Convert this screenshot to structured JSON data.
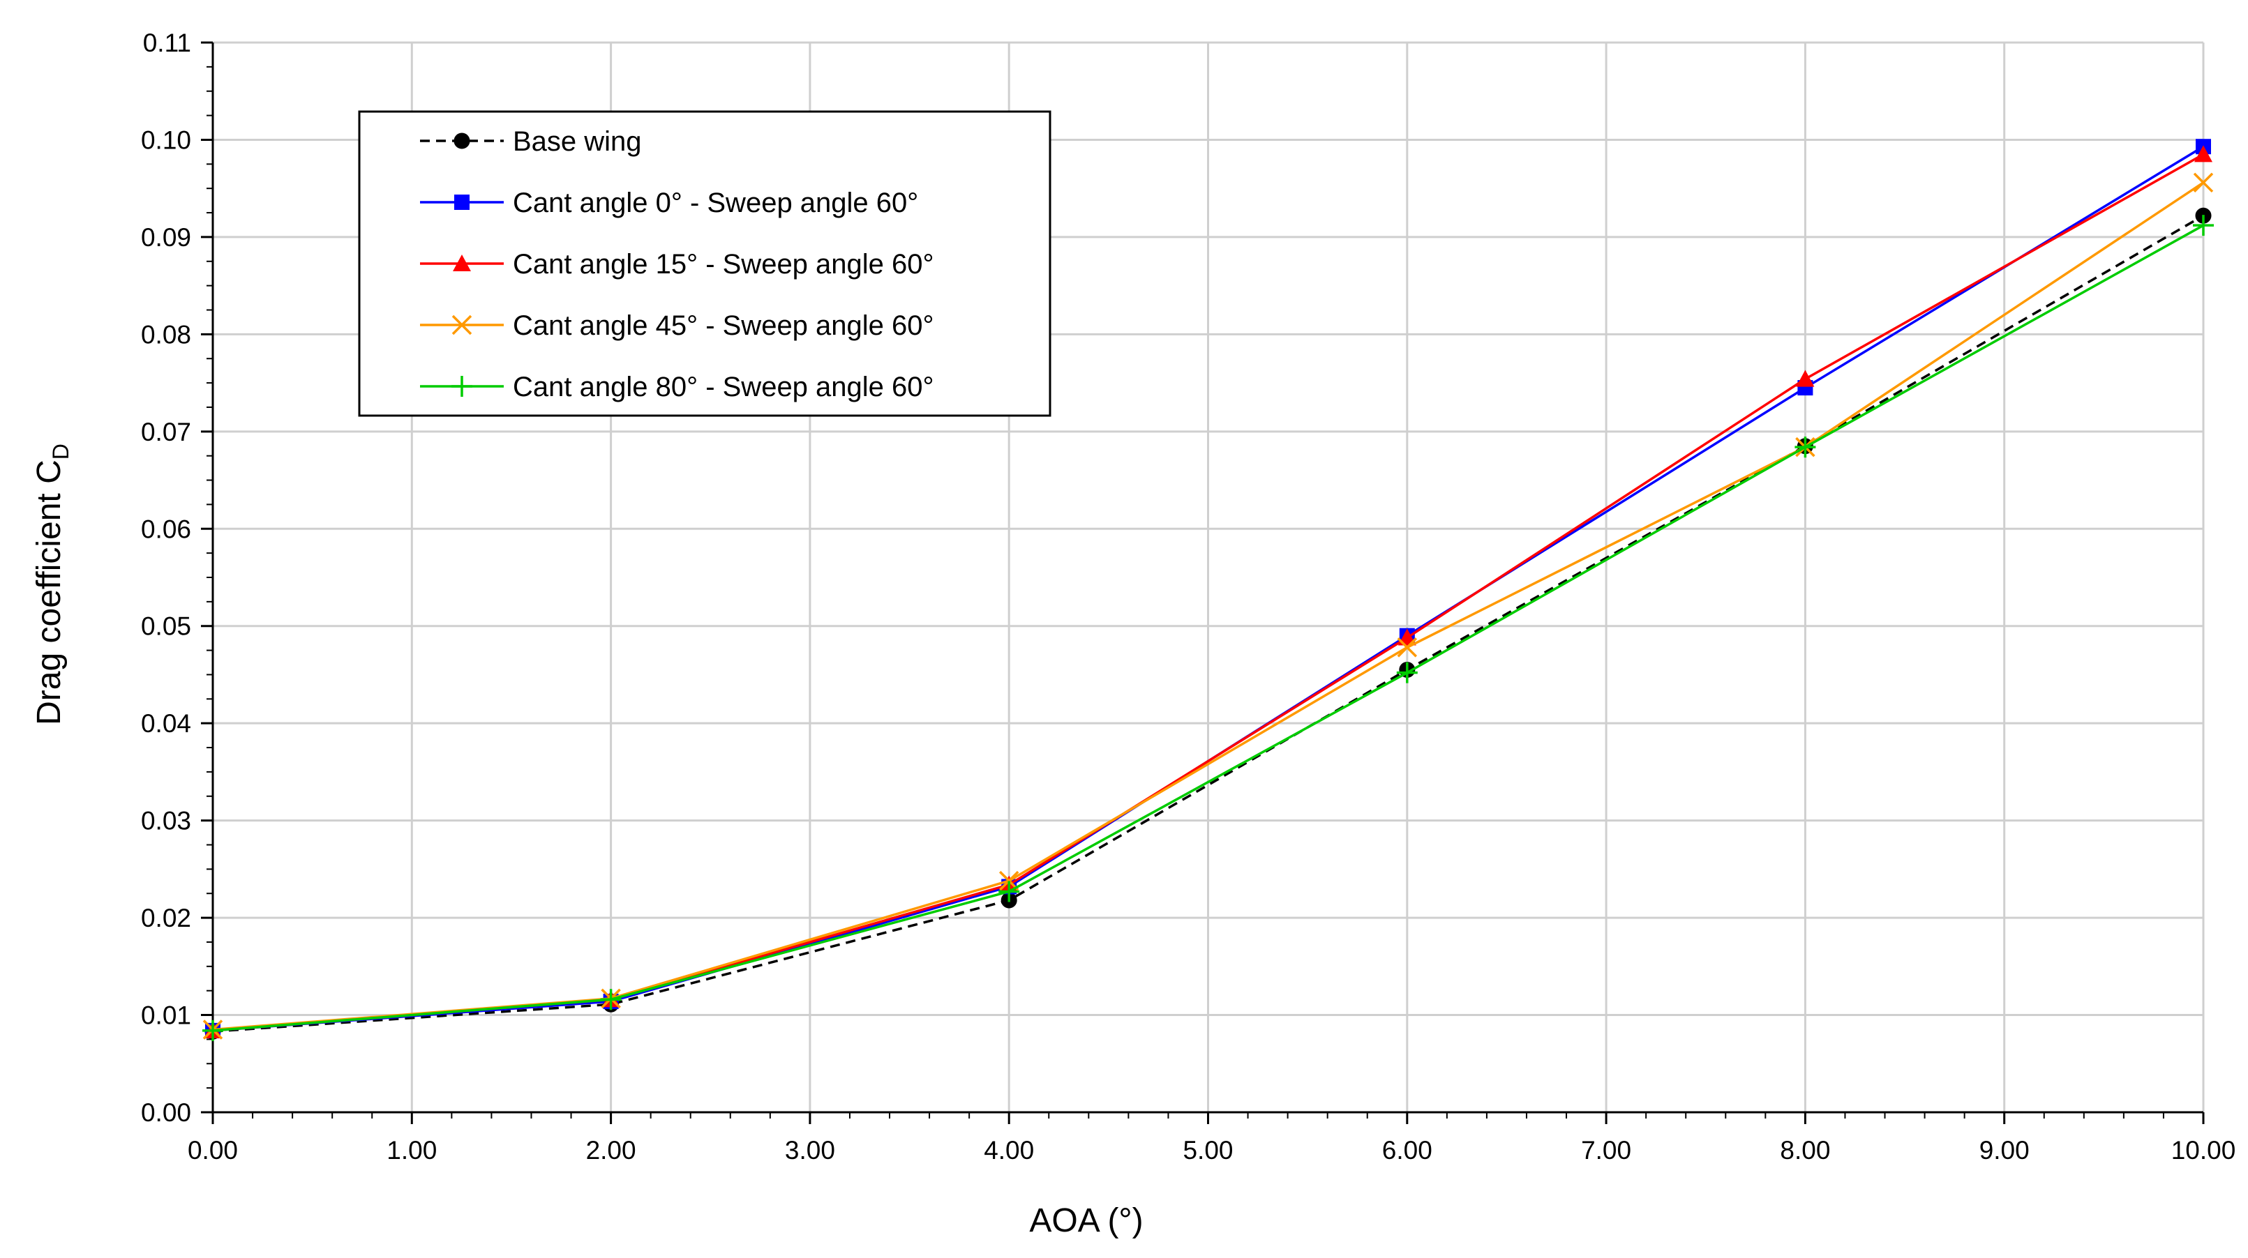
{
  "chart_data": {
    "type": "line",
    "title": "",
    "xlabel": "AOA (°)",
    "ylabel_main": "Drag coefficient C",
    "ylabel_sub": "D",
    "xlim": [
      0,
      10
    ],
    "ylim": [
      0,
      0.11
    ],
    "x_ticks": [
      "0.00",
      "1.00",
      "2.00",
      "3.00",
      "4.00",
      "5.00",
      "6.00",
      "7.00",
      "8.00",
      "9.00",
      "10.00"
    ],
    "y_ticks": [
      "0.00",
      "0.01",
      "0.02",
      "0.03",
      "0.04",
      "0.05",
      "0.06",
      "0.07",
      "0.08",
      "0.09",
      "0.10",
      "0.11"
    ],
    "x_minor_per_major": 5,
    "y_minor_per_major": 4,
    "grid": true,
    "legend_position": "top-left",
    "x": [
      0,
      2,
      4,
      6,
      8,
      10
    ],
    "series": [
      {
        "name": "Base wing",
        "color": "#000000",
        "dash": "dashed",
        "marker": "circle",
        "values": [
          0.0083,
          0.0111,
          0.0218,
          0.0455,
          0.0685,
          0.0922
        ]
      },
      {
        "name": "Cant angle 0° - Sweep angle 60°",
        "color": "#0000ff",
        "dash": "solid",
        "marker": "square",
        "values": [
          0.0084,
          0.0114,
          0.0232,
          0.049,
          0.0745,
          0.0993
        ]
      },
      {
        "name": "Cant angle 15° - Sweep angle 60°",
        "color": "#ff0000",
        "dash": "solid",
        "marker": "triangle",
        "values": [
          0.0084,
          0.0116,
          0.0234,
          0.0488,
          0.0754,
          0.0985
        ]
      },
      {
        "name": "Cant angle 45° - Sweep angle 60°",
        "color": "#ff9900",
        "dash": "solid",
        "marker": "x",
        "values": [
          0.0085,
          0.0117,
          0.0238,
          0.0478,
          0.0684,
          0.0956
        ]
      },
      {
        "name": "Cant angle 80° - Sweep angle 60°",
        "color": "#00cc00",
        "dash": "solid",
        "marker": "plus",
        "values": [
          0.0084,
          0.0116,
          0.0227,
          0.0452,
          0.0684,
          0.0912
        ]
      }
    ]
  }
}
